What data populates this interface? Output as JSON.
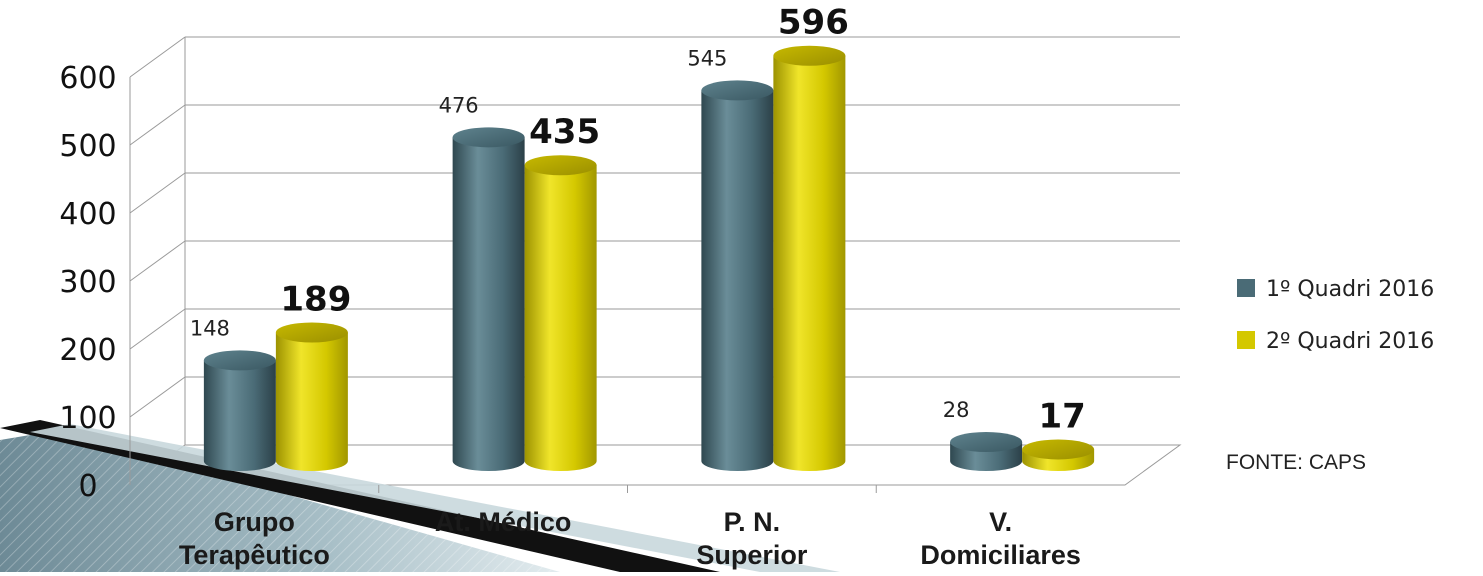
{
  "chart_data": {
    "type": "bar",
    "categories": [
      [
        "Grupo",
        "Terapêutico"
      ],
      [
        "At. Médico"
      ],
      [
        "P. N.",
        "Superior"
      ],
      [
        "V.",
        "Domiciliares"
      ]
    ],
    "series": [
      {
        "name": "1º Quadri 2016",
        "values": [
          148,
          476,
          545,
          28
        ],
        "color": "#4a6b76",
        "label_style": "small"
      },
      {
        "name": "2º Quadri 2016",
        "values": [
          189,
          435,
          596,
          17
        ],
        "color": "#d4c800",
        "label_style": "large"
      }
    ],
    "yticks": [
      "0",
      "100",
      "200",
      "300",
      "400",
      "500",
      "600"
    ],
    "ylim": [
      0,
      600
    ],
    "grid": true,
    "three_d": true,
    "legend_position": "right"
  },
  "source_note": "FONTE: CAPS"
}
